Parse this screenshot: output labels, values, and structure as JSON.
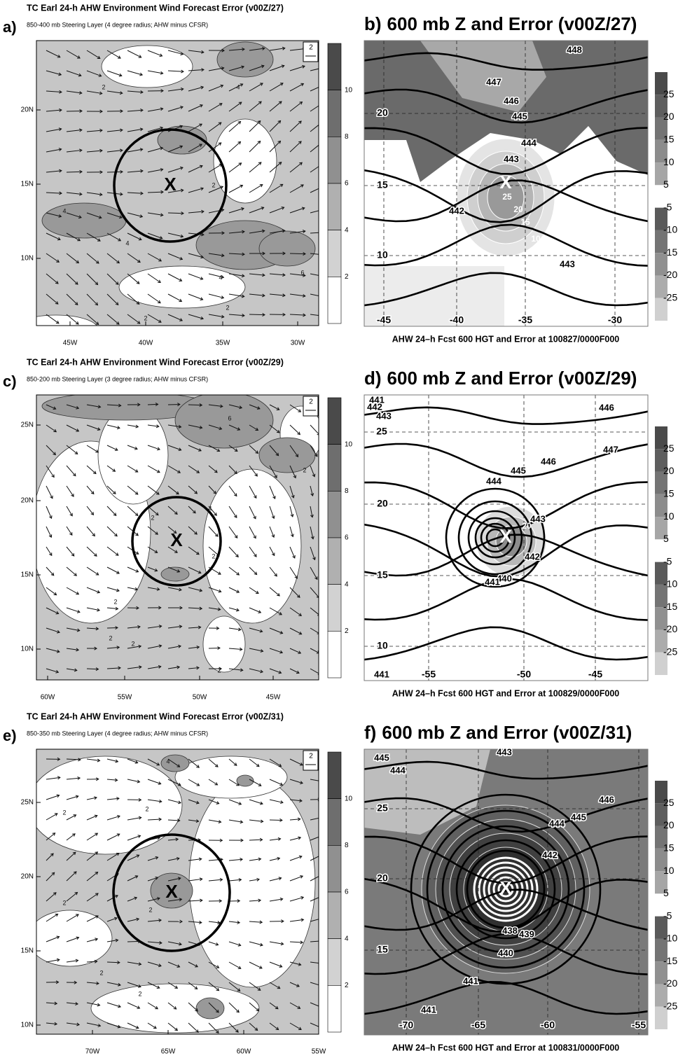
{
  "panels": [
    {
      "label": "a)",
      "title": "TC Earl 24-h AHW Environment Wind Forecast Error (v00Z/27)",
      "subtitle": "850-400 mb Steering Layer (4 degree radius; AHW minus CFSR)",
      "center_mark": "X",
      "reference_vector": "2",
      "x_labels": [
        "45W",
        "40W",
        "35W",
        "30W"
      ],
      "y_labels": [
        "20N",
        "15N",
        "10N"
      ],
      "colorbar": [
        10,
        8,
        6,
        4,
        2
      ],
      "contour_labels": [
        2,
        4,
        2,
        4,
        4,
        4,
        2,
        2,
        6
      ]
    },
    {
      "label": "b)",
      "title": "600 mb Z and Error (v00Z/27)",
      "center_mark": "X",
      "footer": "AHW 24–h Fcst 600 HGT and Error at 100827/0000F000",
      "x_labels": [
        -45,
        -40,
        -35,
        -30
      ],
      "y_labels": [
        20,
        15,
        10
      ],
      "colorbar": [
        25,
        20,
        15,
        10,
        5,
        -5,
        -10,
        -15,
        -20,
        -25
      ],
      "height_labels": [
        448,
        447,
        446,
        445,
        444,
        443,
        442,
        443
      ],
      "error_labels": [
        25,
        20,
        15,
        10
      ]
    },
    {
      "label": "c)",
      "title": "TC Earl 24-h AHW Environment Wind Forecast Error (v00Z/29)",
      "subtitle": "850-200 mb Steering Layer (3 degree radius; AHW minus CFSR)",
      "center_mark": "X",
      "reference_vector": "2",
      "x_labels": [
        "60W",
        "55W",
        "50W",
        "45W"
      ],
      "y_labels": [
        "25N",
        "20N",
        "15N",
        "10N"
      ],
      "colorbar": [
        10,
        8,
        6,
        4,
        2
      ],
      "contour_labels": [
        6,
        4,
        2,
        2,
        2,
        2,
        2,
        2,
        2
      ]
    },
    {
      "label": "d)",
      "title": "600 mb Z and Error (v00Z/29)",
      "center_mark": "X",
      "footer": "AHW 24–h Fcst 600 HGT and Error at 100829/0000F000",
      "x_labels": [
        -55,
        -50,
        -45
      ],
      "y_labels": [
        25,
        20,
        15,
        10
      ],
      "colorbar": [
        25,
        20,
        15,
        10,
        5,
        -5,
        -10,
        -15,
        -20,
        -25
      ],
      "height_labels": [
        441,
        442,
        443,
        446,
        447,
        446,
        445,
        444,
        443,
        442,
        440,
        441,
        441
      ],
      "error_labels": [
        20
      ]
    },
    {
      "label": "e)",
      "title": "TC Earl 24-h AHW Environment Wind Forecast Error (v00Z/31)",
      "subtitle": "850-350 mb Steering Layer (4 degree radius; AHW minus CFSR)",
      "center_mark": "X",
      "reference_vector": "2",
      "x_labels": [
        "70W",
        "65W",
        "60W",
        "55W"
      ],
      "y_labels": [
        "25N",
        "20N",
        "15N",
        "10N"
      ],
      "colorbar": [
        10,
        8,
        6,
        4,
        2
      ],
      "contour_labels": [
        4,
        2,
        2,
        2,
        2,
        2,
        2
      ]
    },
    {
      "label": "f)",
      "title": "600 mb Z and Error (v00Z/31)",
      "center_mark": "X",
      "footer": "AHW 24–h Fcst 600 HGT and Error at 100831/0000F000",
      "x_labels": [
        -70,
        -65,
        -60,
        -55
      ],
      "y_labels": [
        25,
        20,
        15
      ],
      "colorbar": [
        25,
        20,
        15,
        10,
        5,
        -5,
        -10,
        -15,
        -20,
        -25
      ],
      "height_labels": [
        445,
        444,
        443,
        446,
        444,
        445,
        442,
        438,
        439,
        440,
        441,
        441
      ],
      "error_labels": []
    }
  ]
}
